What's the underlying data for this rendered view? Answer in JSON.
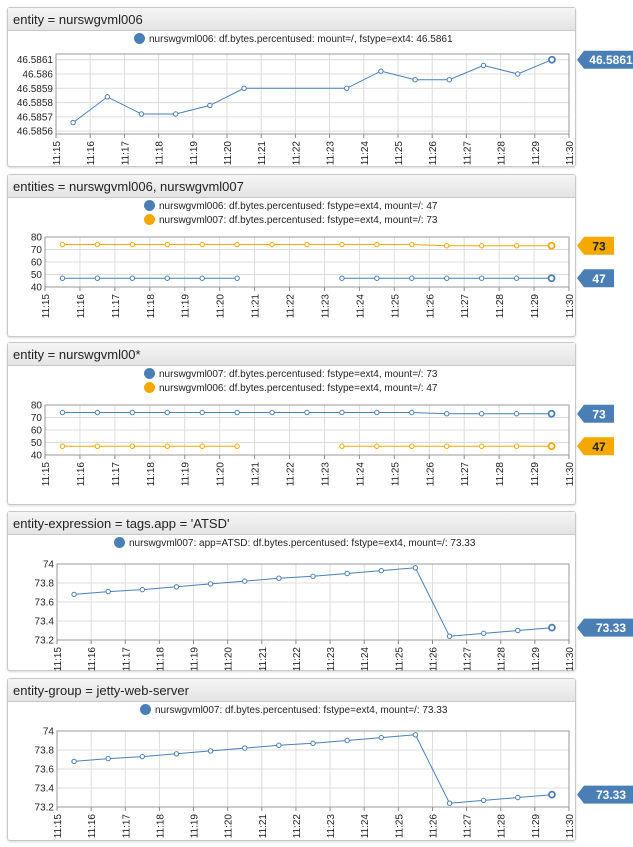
{
  "time_ticks": [
    "11:15",
    "11:16",
    "11:17",
    "11:18",
    "11:19",
    "11:20",
    "11:21",
    "11:22",
    "11:23",
    "11:24",
    "11:25",
    "11:26",
    "11:27",
    "11:28",
    "11:29",
    "11:30"
  ],
  "colors": {
    "blue": "#4a7fb5",
    "orange": "#f5a800"
  },
  "chart_data": [
    {
      "type": "line",
      "title": "entity = nurswgvml006",
      "x": [
        "11:15:30",
        "11:16:30",
        "11:17:30",
        "11:18:30",
        "11:19:30",
        "11:20:30",
        "11:23:30",
        "11:24:30",
        "11:25:30",
        "11:26:30",
        "11:27:30",
        "11:28:30",
        "11:29:30"
      ],
      "series": [
        {
          "name": "nurswgvml006: df.bytes.percentused: mount=/, fstype=ext4: 46.5861",
          "color": "#4a7fb5",
          "last_label": "46.5861",
          "values": [
            46.58566,
            46.58584,
            46.58572,
            46.58572,
            46.58578,
            46.5859,
            46.5859,
            46.58602,
            46.58596,
            46.58596,
            46.58606,
            46.586,
            46.5861
          ]
        }
      ],
      "yticks": [
        "46.5861",
        "46.586",
        "46.5859",
        "46.5858",
        "46.5857",
        "46.5856"
      ],
      "ylim": [
        46.58558,
        46.58614
      ],
      "ytick_values": [
        46.5861,
        46.586,
        46.5859,
        46.5858,
        46.5857,
        46.5856
      ]
    },
    {
      "type": "line",
      "title": "entities = nurswgvml006, nurswgvml007",
      "x": [
        "11:15:30",
        "11:16:30",
        "11:17:30",
        "11:18:30",
        "11:19:30",
        "11:20:30",
        "11:21:30",
        "11:22:30",
        "11:23:30",
        "11:24:30",
        "11:25:30",
        "11:26:30",
        "11:27:30",
        "11:28:30",
        "11:29:30"
      ],
      "series": [
        {
          "name": "nurswgvml006: df.bytes.percentused: fstype=ext4, mount=/: 47",
          "color": "#4a7fb5",
          "last_label": "47",
          "values": [
            47,
            47,
            47,
            47,
            47,
            47,
            null,
            null,
            47,
            47,
            47,
            47,
            47,
            47,
            47
          ]
        },
        {
          "name": "nurswgvml007: df.bytes.percentused: fstype=ext4, mount=/: 73",
          "color": "#f5a800",
          "last_label": "73",
          "values": [
            74,
            74,
            74,
            74,
            74,
            74,
            74,
            74,
            74,
            74,
            74,
            73,
            73,
            73,
            73
          ]
        }
      ],
      "yticks": [
        "80",
        "70",
        "60",
        "50",
        "40"
      ],
      "ylim": [
        40,
        80
      ],
      "ytick_values": [
        80,
        70,
        60,
        50,
        40
      ]
    },
    {
      "type": "line",
      "title": "entity = nurswgvml00*",
      "x": [
        "11:15:30",
        "11:16:30",
        "11:17:30",
        "11:18:30",
        "11:19:30",
        "11:20:30",
        "11:21:30",
        "11:22:30",
        "11:23:30",
        "11:24:30",
        "11:25:30",
        "11:26:30",
        "11:27:30",
        "11:28:30",
        "11:29:30"
      ],
      "series": [
        {
          "name": "nurswgvml007: df.bytes.percentused: fstype=ext4, mount=/: 73",
          "color": "#4a7fb5",
          "last_label": "73",
          "values": [
            74,
            74,
            74,
            74,
            74,
            74,
            74,
            74,
            74,
            74,
            74,
            73,
            73,
            73,
            73
          ]
        },
        {
          "name": "nurswgvml006: df.bytes.percentused: fstype=ext4, mount=/: 47",
          "color": "#f5a800",
          "last_label": "47",
          "values": [
            47,
            47,
            47,
            47,
            47,
            47,
            null,
            null,
            47,
            47,
            47,
            47,
            47,
            47,
            47
          ]
        }
      ],
      "yticks": [
        "80",
        "70",
        "60",
        "50",
        "40"
      ],
      "ylim": [
        40,
        80
      ],
      "ytick_values": [
        80,
        70,
        60,
        50,
        40
      ]
    },
    {
      "type": "line",
      "title": "entity-expression = tags.app = 'ATSD'",
      "x": [
        "11:15:30",
        "11:16:30",
        "11:17:30",
        "11:18:30",
        "11:19:30",
        "11:20:30",
        "11:21:30",
        "11:22:30",
        "11:23:30",
        "11:24:30",
        "11:25:30",
        "11:26:30",
        "11:27:30",
        "11:28:30",
        "11:29:30"
      ],
      "series": [
        {
          "name": "nurswgvml007: app=ATSD: df.bytes.percentused: fstype=ext4, mount=/: 73.33",
          "color": "#4a7fb5",
          "last_label": "73.33",
          "values": [
            73.68,
            73.71,
            73.73,
            73.76,
            73.79,
            73.82,
            73.85,
            73.87,
            73.9,
            73.93,
            73.96,
            73.24,
            73.27,
            73.3,
            73.33
          ]
        }
      ],
      "yticks": [
        "74",
        "73.8",
        "73.6",
        "73.4",
        "73.2"
      ],
      "ylim": [
        73.2,
        74
      ],
      "ytick_values": [
        74,
        73.8,
        73.6,
        73.4,
        73.2
      ]
    },
    {
      "type": "line",
      "title": "entity-group = jetty-web-server",
      "x": [
        "11:15:30",
        "11:16:30",
        "11:17:30",
        "11:18:30",
        "11:19:30",
        "11:20:30",
        "11:21:30",
        "11:22:30",
        "11:23:30",
        "11:24:30",
        "11:25:30",
        "11:26:30",
        "11:27:30",
        "11:28:30",
        "11:29:30"
      ],
      "series": [
        {
          "name": "nurswgvml007: df.bytes.percentused: fstype=ext4, mount=/: 73.33",
          "color": "#4a7fb5",
          "last_label": "73.33",
          "values": [
            73.68,
            73.71,
            73.73,
            73.76,
            73.79,
            73.82,
            73.85,
            73.87,
            73.9,
            73.93,
            73.96,
            73.24,
            73.27,
            73.3,
            73.33
          ]
        }
      ],
      "yticks": [
        "74",
        "73.8",
        "73.6",
        "73.4",
        "73.2"
      ],
      "ylim": [
        73.2,
        74
      ],
      "ytick_values": [
        74,
        73.8,
        73.6,
        73.4,
        73.2
      ]
    }
  ]
}
